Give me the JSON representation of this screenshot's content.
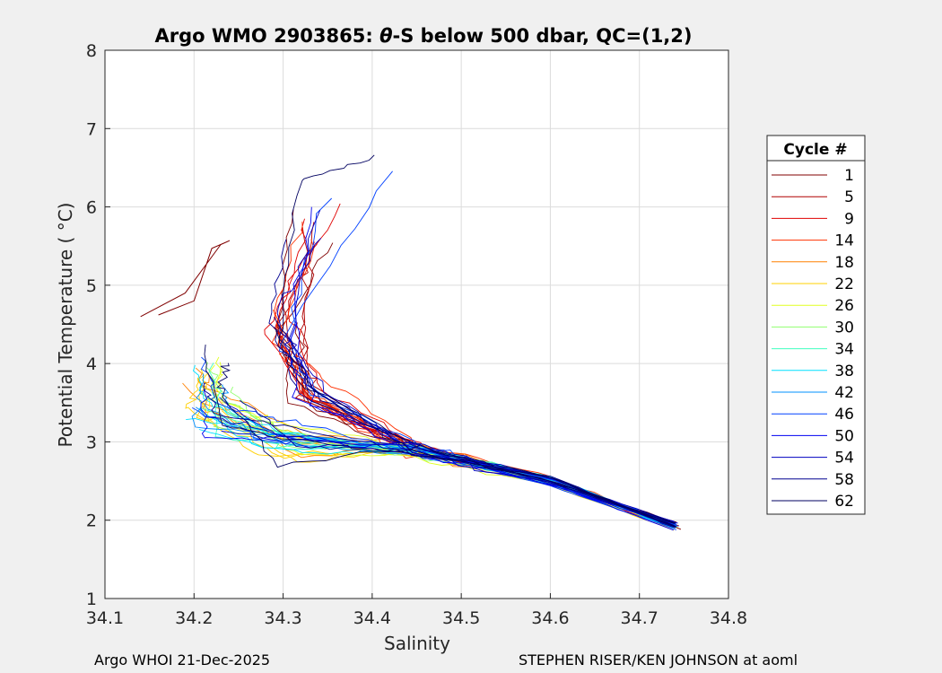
{
  "chart_data": {
    "type": "line",
    "title_prefix": "Argo WMO 2903865: ",
    "title_theta": "θ",
    "title_suffix": "-S below 500 dbar,  QC=(1,2)",
    "xlabel": "Salinity",
    "ylabel": "Potential Temperature ( °C)",
    "xlim": [
      34.1,
      34.8
    ],
    "ylim": [
      1,
      8
    ],
    "xticks": [
      "34.1",
      "34.2",
      "34.3",
      "34.4",
      "34.5",
      "34.6",
      "34.7",
      "34.8"
    ],
    "yticks": [
      "1",
      "2",
      "3",
      "4",
      "5",
      "6",
      "7",
      "8"
    ],
    "grid": true,
    "legend_title": "Cycle #",
    "legend_position": "right-outside",
    "series": [
      {
        "name": "1",
        "color": "#800000"
      },
      {
        "name": "5",
        "color": "#b00000"
      },
      {
        "name": "9",
        "color": "#e00000"
      },
      {
        "name": "14",
        "color": "#ff3000"
      },
      {
        "name": "18",
        "color": "#ff8000"
      },
      {
        "name": "22",
        "color": "#ffd000"
      },
      {
        "name": "26",
        "color": "#e0ff20"
      },
      {
        "name": "30",
        "color": "#90ff70"
      },
      {
        "name": "34",
        "color": "#40ffc0"
      },
      {
        "name": "38",
        "color": "#00e0ff"
      },
      {
        "name": "42",
        "color": "#0090ff"
      },
      {
        "name": "46",
        "color": "#0040ff"
      },
      {
        "name": "50",
        "color": "#0000f0"
      },
      {
        "name": "54",
        "color": "#0000c0"
      },
      {
        "name": "58",
        "color": "#000090"
      },
      {
        "name": "62",
        "color": "#000060"
      }
    ],
    "profile_shape": {
      "deep_end": [
        34.74,
        1.93
      ],
      "knee": [
        34.6,
        2.5
      ],
      "mid": [
        34.45,
        2.9
      ],
      "shallow_upper_branch": [
        [
          34.33,
          3.6
        ],
        [
          34.3,
          4.5
        ],
        [
          34.34,
          5.8
        ],
        [
          34.42,
          6.8
        ]
      ],
      "shallow_lower_branch": [
        [
          34.3,
          3.0
        ],
        [
          34.22,
          3.4
        ]
      ],
      "outlier_branch": [
        [
          34.14,
          4.6
        ],
        [
          34.24,
          5.57
        ]
      ]
    }
  },
  "footer": {
    "left": "Argo WHOI 21-Dec-2025",
    "right": "STEPHEN RISER/KEN JOHNSON at aoml"
  }
}
